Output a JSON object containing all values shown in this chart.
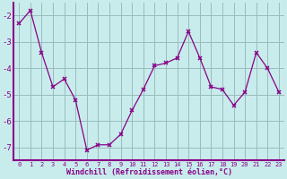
{
  "x": [
    0,
    1,
    2,
    3,
    4,
    5,
    6,
    7,
    8,
    9,
    10,
    11,
    12,
    13,
    14,
    15,
    16,
    17,
    18,
    19,
    20,
    21,
    22,
    23
  ],
  "y": [
    -2.3,
    -1.8,
    -3.4,
    -4.7,
    -4.4,
    -5.2,
    -7.1,
    -6.9,
    -6.9,
    -6.5,
    -5.6,
    -4.8,
    -3.9,
    -3.8,
    -3.6,
    -2.6,
    -3.6,
    -4.7,
    -4.8,
    -5.4,
    -4.9,
    -3.4,
    -4.0,
    -4.9
  ],
  "xlabel": "Windchill (Refroidissement éolien,°C)",
  "ylim": [
    -7.5,
    -1.5
  ],
  "yticks": [
    -7,
    -6,
    -5,
    -4,
    -3,
    -2
  ],
  "xticks": [
    0,
    1,
    2,
    3,
    4,
    5,
    6,
    7,
    8,
    9,
    10,
    11,
    12,
    13,
    14,
    15,
    16,
    17,
    18,
    19,
    20,
    21,
    22,
    23
  ],
  "line_color": "#880088",
  "marker": "x",
  "bg_color": "#c8ecec",
  "grid_color": "#99bbbb",
  "axis_bg": "#c8ecec",
  "text_color": "#880088",
  "border_color": "#880088"
}
